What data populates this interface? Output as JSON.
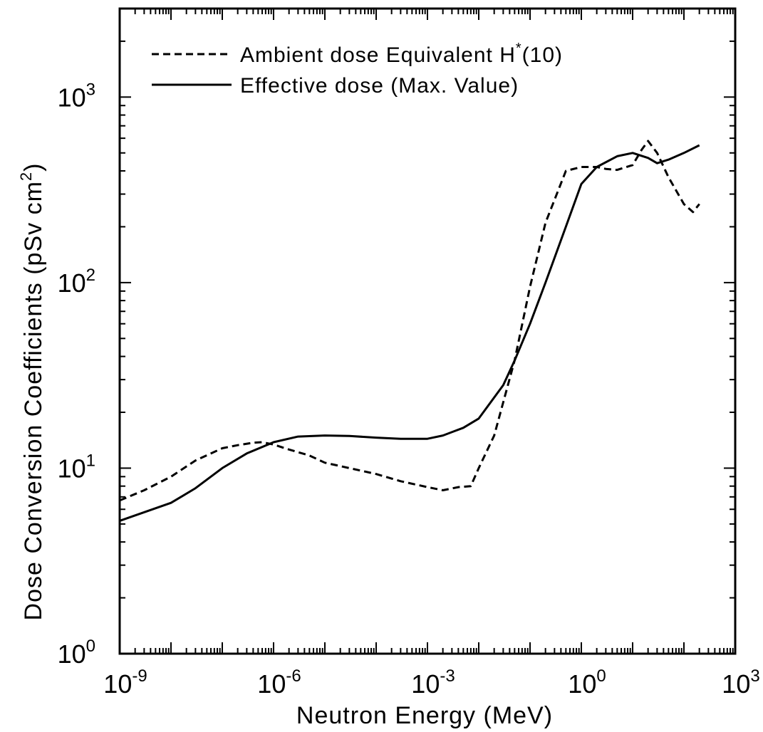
{
  "chart_data": {
    "type": "line",
    "title": "",
    "xlabel": "Neutron Energy (MeV)",
    "ylabel": "Dose Conversion Coefficients (pSv cm",
    "ylabel_sup": "2",
    "ylabel_close": ")",
    "xscale": "log",
    "yscale": "log",
    "xlim": [
      1e-09,
      1000
    ],
    "ylim": [
      1,
      3000
    ],
    "grid": false,
    "legend_position": "top-left",
    "x_ticks": [
      {
        "value": 1e-09,
        "base": "10",
        "exp": "-9"
      },
      {
        "value": 1e-06,
        "base": "10",
        "exp": "-6"
      },
      {
        "value": 0.001,
        "base": "10",
        "exp": "-3"
      },
      {
        "value": 1,
        "base": "10",
        "exp": "0"
      },
      {
        "value": 1000,
        "base": "10",
        "exp": "3"
      }
    ],
    "y_ticks": [
      {
        "value": 1,
        "base": "10",
        "exp": "0"
      },
      {
        "value": 10,
        "base": "10",
        "exp": "1"
      },
      {
        "value": 100,
        "base": "10",
        "exp": "2"
      },
      {
        "value": 1000,
        "base": "10",
        "exp": "3"
      }
    ],
    "series": [
      {
        "name": "Ambient dose Equivalent H",
        "name_sup": "*",
        "name_suffix": "(10)",
        "style": "dashed",
        "color": "#000000",
        "x": [
          1e-09,
          3e-09,
          1e-08,
          3e-08,
          1e-07,
          2e-07,
          4e-07,
          6e-07,
          1e-06,
          2e-06,
          5e-06,
          1e-05,
          3e-05,
          0.0001,
          0.0003,
          0.001,
          0.002,
          0.004,
          0.007,
          0.01,
          0.02,
          0.05,
          0.1,
          0.2,
          0.5,
          1,
          2,
          3,
          5,
          10,
          15,
          20,
          30,
          50,
          100,
          150,
          200
        ],
        "y": [
          6.7,
          7.6,
          9,
          11,
          12.8,
          13.3,
          13.7,
          13.8,
          13.4,
          12.6,
          11.7,
          10.7,
          10,
          9.3,
          8.5,
          7.9,
          7.6,
          7.9,
          8,
          10,
          15,
          38,
          95,
          210,
          400,
          420,
          420,
          410,
          405,
          430,
          520,
          580,
          500,
          370,
          265,
          240,
          265
        ]
      },
      {
        "name": "Effective dose (Max. Value)",
        "style": "solid",
        "color": "#000000",
        "x": [
          1e-09,
          1e-08,
          3e-08,
          1e-07,
          3e-07,
          1e-06,
          3e-06,
          1e-05,
          3e-05,
          0.0001,
          0.0003,
          0.001,
          0.002,
          0.005,
          0.01,
          0.03,
          0.05,
          0.1,
          0.2,
          0.5,
          1,
          2,
          5,
          10,
          20,
          30,
          50,
          100,
          200
        ],
        "y": [
          5.2,
          6.5,
          7.8,
          10,
          12,
          13.8,
          14.8,
          15,
          14.9,
          14.6,
          14.4,
          14.4,
          15,
          16.5,
          18.5,
          28,
          38,
          60,
          100,
          200,
          340,
          420,
          480,
          500,
          470,
          440,
          460,
          500,
          550
        ]
      }
    ]
  }
}
